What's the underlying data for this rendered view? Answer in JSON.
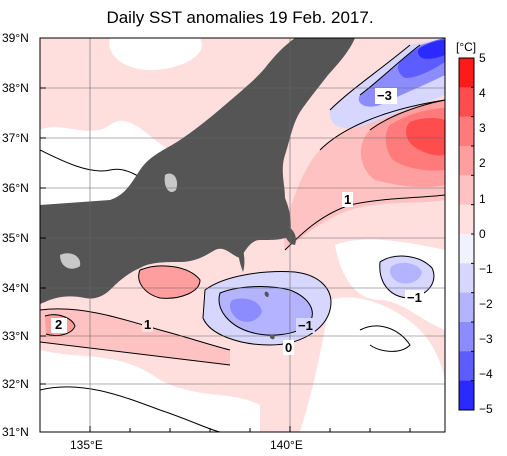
{
  "title": "Daily SST anomalies 19 Feb. 2017.",
  "lat_labels": [
    "39°N",
    "38°N",
    "37°N",
    "36°N",
    "35°N",
    "34°N",
    "33°N",
    "32°N",
    "31°N"
  ],
  "lon_labels": [
    "135°E",
    "140°E"
  ],
  "colorbar": {
    "unit": "[°C]",
    "tick_labels": [
      "5",
      "4",
      "3",
      "2",
      "1",
      "0",
      "−1",
      "−2",
      "−3",
      "−4",
      "−5"
    ],
    "colors": [
      "#ff1a1a",
      "#ff4d4d",
      "#ff7a7a",
      "#ff9e9e",
      "#ffc2c2",
      "#ffe0e0",
      "#f2f2ff",
      "#d6d6ff",
      "#b3b3ff",
      "#8c8cff",
      "#5c5cff",
      "#2a2aff"
    ]
  },
  "contour_labels": {
    "m3": "−3",
    "l2": "2",
    "p1a": "1",
    "p1b": "1",
    "m1a": "−1",
    "m1b": "−1",
    "z0": "0"
  },
  "colors": {
    "land": "#555555",
    "lake": "#c8c8c8",
    "sea_base": "#ffdede"
  }
}
